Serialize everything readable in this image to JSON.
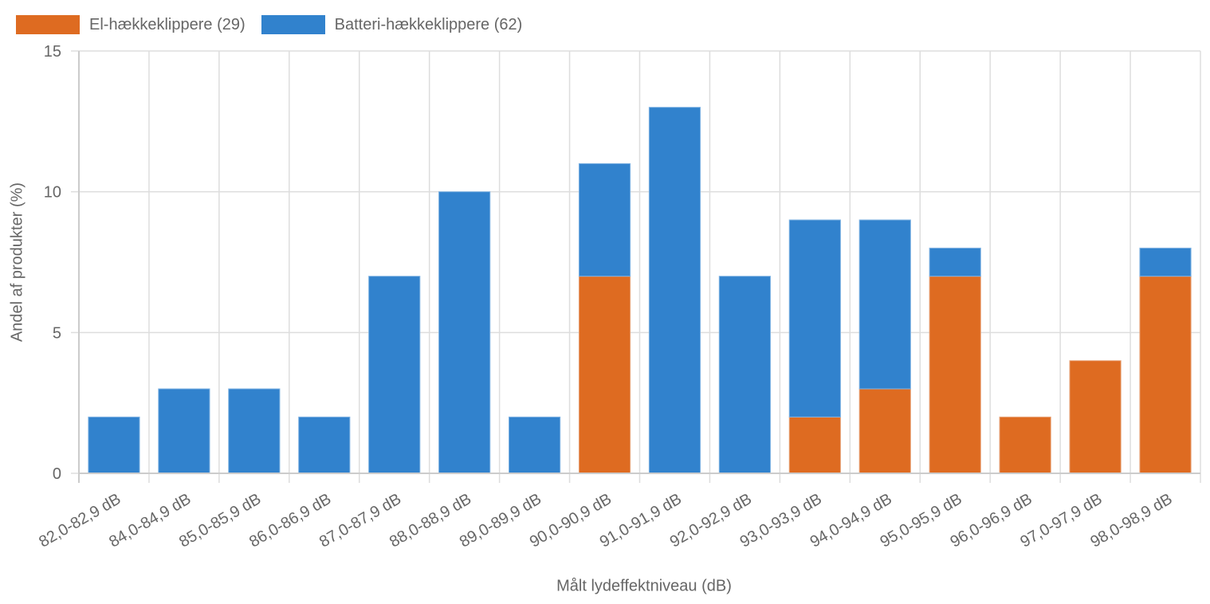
{
  "chart_data": {
    "type": "bar",
    "stacked": true,
    "title": "",
    "xlabel": "Målt lydeffektniveau (dB)",
    "ylabel": "Andel af produkter (%)",
    "ylim": [
      0,
      15
    ],
    "yticks": [
      0,
      5,
      10,
      15
    ],
    "grid": true,
    "legend_position": "top-left",
    "categories": [
      "82,0-82,9 dB",
      "84,0-84,9 dB",
      "85,0-85,9 dB",
      "86,0-86,9 dB",
      "87,0-87,9 dB",
      "88,0-88,9 dB",
      "89,0-89,9 dB",
      "90,0-90,9 dB",
      "91,0-91,9 dB",
      "92,0-92,9 dB",
      "93,0-93,9 dB",
      "94,0-94,9 dB",
      "95,0-95,9 dB",
      "96,0-96,9 dB",
      "97,0-97,9 dB",
      "98,0-98,9 dB"
    ],
    "series": [
      {
        "name": "El-hækkeklippere (29)",
        "color": "#de6b21",
        "values": [
          0,
          0,
          0,
          0,
          0,
          0,
          0,
          7,
          0,
          0,
          2,
          3,
          7,
          2,
          4,
          7
        ]
      },
      {
        "name": "Batteri-hækkeklippere (62)",
        "color": "#3182cd",
        "values": [
          2,
          3,
          3,
          2,
          7,
          10,
          2,
          4,
          13,
          7,
          7,
          6,
          1,
          0,
          0,
          1
        ]
      }
    ]
  },
  "legend": {
    "items": [
      {
        "label": "El-hækkeklippere (29)",
        "color": "#de6b21"
      },
      {
        "label": "Batteri-hækkeklippere (62)",
        "color": "#3182cd"
      }
    ]
  },
  "axes": {
    "x_title": "Målt lydeffektniveau (dB)",
    "y_title": "Andel af produkter (%)"
  }
}
